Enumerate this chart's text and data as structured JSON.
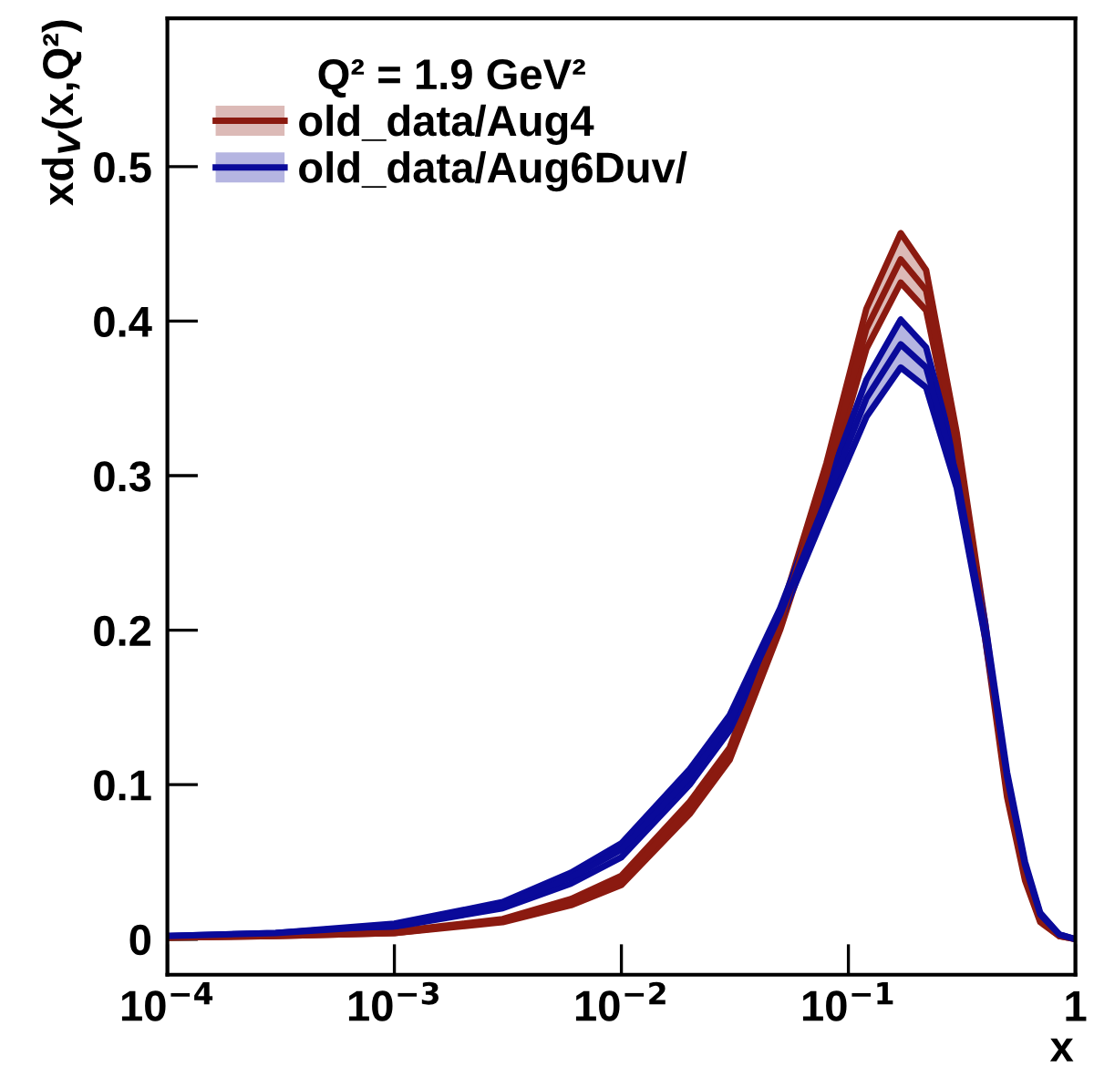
{
  "chart_data": {
    "type": "line",
    "xlabel": "x",
    "ylabel": "xd$_{V}$(x,Q²)",
    "legend_title": "Q² = 1.9 GeV²",
    "x": [
      0.0001,
      0.0003,
      0.001,
      0.003,
      0.006,
      0.01,
      0.02,
      0.03,
      0.05,
      0.08,
      0.12,
      0.17,
      0.22,
      0.3,
      0.4,
      0.5,
      0.6,
      0.7,
      0.85,
      1
    ],
    "series": [
      {
        "name": "old_data/Aug4",
        "color": "#8b1a10",
        "values": [
          0.001,
          0.002,
          0.004,
          0.012,
          0.024,
          0.038,
          0.085,
          0.12,
          0.205,
          0.3,
          0.395,
          0.44,
          0.42,
          0.32,
          0.2,
          0.095,
          0.04,
          0.012,
          0.002,
          0.0
        ],
        "lower": [
          0.001,
          0.002,
          0.004,
          0.011,
          0.022,
          0.035,
          0.081,
          0.116,
          0.2,
          0.292,
          0.382,
          0.425,
          0.407,
          0.312,
          0.195,
          0.092,
          0.038,
          0.011,
          0.002,
          0.0
        ],
        "upper": [
          0.001,
          0.002,
          0.005,
          0.013,
          0.026,
          0.041,
          0.089,
          0.124,
          0.21,
          0.308,
          0.408,
          0.457,
          0.433,
          0.328,
          0.205,
          0.098,
          0.042,
          0.013,
          0.002,
          0.0
        ]
      },
      {
        "name": "old_data/Aug6Duv/",
        "color": "#0a0a9a",
        "values": [
          0.002,
          0.004,
          0.009,
          0.022,
          0.04,
          0.058,
          0.105,
          0.14,
          0.21,
          0.285,
          0.35,
          0.385,
          0.37,
          0.3,
          0.2,
          0.105,
          0.048,
          0.016,
          0.003,
          0.0
        ],
        "lower": [
          0.002,
          0.004,
          0.008,
          0.02,
          0.036,
          0.053,
          0.1,
          0.135,
          0.206,
          0.278,
          0.338,
          0.37,
          0.357,
          0.292,
          0.195,
          0.102,
          0.046,
          0.015,
          0.003,
          0.0
        ],
        "upper": [
          0.002,
          0.004,
          0.01,
          0.024,
          0.043,
          0.062,
          0.11,
          0.145,
          0.214,
          0.292,
          0.362,
          0.401,
          0.383,
          0.308,
          0.205,
          0.108,
          0.05,
          0.017,
          0.003,
          0.0
        ]
      }
    ],
    "log": "x",
    "xlim": [
      0.0001,
      1
    ],
    "ylim": [
      -0.023,
      0.596
    ],
    "xticks": [
      {
        "value": 0.0001,
        "label": "10$^{−4}$"
      },
      {
        "value": 0.001,
        "label": "10$^{−3}$"
      },
      {
        "value": 0.01,
        "label": "10$^{−2}$"
      },
      {
        "value": 0.1,
        "label": "10$^{−1}$"
      },
      1
    ],
    "yticks": [
      0,
      0.1,
      0.2,
      0.3,
      0.4,
      0.5
    ],
    "grid": false,
    "legend": "top left",
    "marker": "none",
    "line_style": "solid"
  }
}
